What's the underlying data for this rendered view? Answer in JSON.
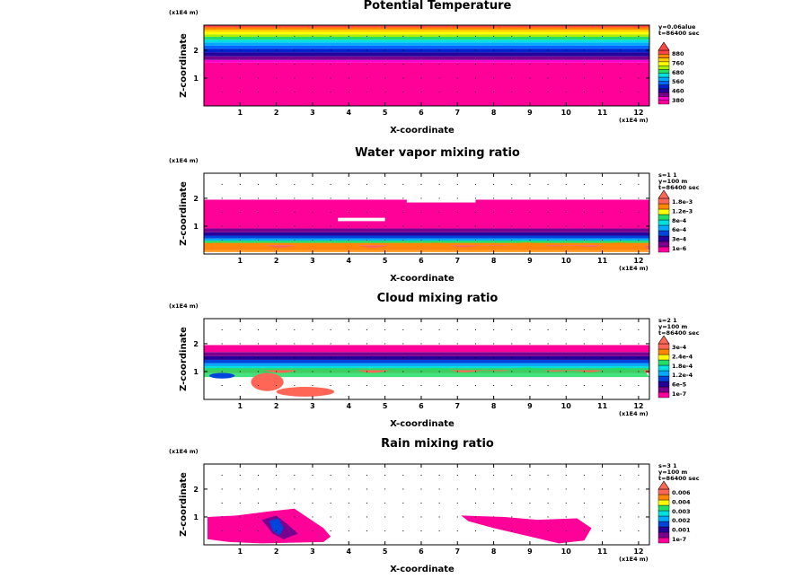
{
  "chart_data": [
    {
      "type": "heatmap",
      "title": "Potential Temperature",
      "xlabel": "X-coordinate",
      "ylabel": "Z-coordinate",
      "x_scale_label": "(x1E4 m)",
      "z_scale_label": "(x1E4 m)",
      "xlim": [
        0,
        12.3
      ],
      "zlim": [
        0,
        2.9
      ],
      "x_ticks": [
        "1",
        "2",
        "3",
        "4",
        "5",
        "6",
        "7",
        "8",
        "9",
        "10",
        "11",
        "12"
      ],
      "z_ticks": [
        "1",
        "2"
      ],
      "meta": [
        "y=0.06alue",
        "t=86400 sec"
      ],
      "legend_levels": [
        "880",
        "760",
        "680",
        "560",
        "460",
        "380"
      ],
      "colors": [
        "#ff0099",
        "#ff00cc",
        "#7a0090",
        "#25009a",
        "#0022cc",
        "#0066ff",
        "#00aaff",
        "#00e0e0",
        "#22dd66",
        "#aaee00",
        "#ffff00",
        "#ffcc00",
        "#ff8800",
        "#ff4444"
      ],
      "bands": [
        {
          "z": [
            0.0,
            1.55
          ],
          "color": "#ff0099"
        },
        {
          "z": [
            1.55,
            1.65
          ],
          "color": "#ff00cc"
        },
        {
          "z": [
            1.65,
            1.78
          ],
          "color": "#7a0090"
        },
        {
          "z": [
            1.78,
            1.92
          ],
          "color": "#25009a"
        },
        {
          "z": [
            1.92,
            2.05
          ],
          "color": "#0022cc"
        },
        {
          "z": [
            2.05,
            2.17
          ],
          "color": "#0066ff"
        },
        {
          "z": [
            2.17,
            2.28
          ],
          "color": "#00aaff"
        },
        {
          "z": [
            2.28,
            2.38
          ],
          "color": "#00e0e0"
        },
        {
          "z": [
            2.38,
            2.48
          ],
          "color": "#22dd66"
        },
        {
          "z": [
            2.48,
            2.57
          ],
          "color": "#aaee00"
        },
        {
          "z": [
            2.57,
            2.66
          ],
          "color": "#ffff00"
        },
        {
          "z": [
            2.66,
            2.74
          ],
          "color": "#ffcc00"
        },
        {
          "z": [
            2.74,
            2.82
          ],
          "color": "#ff8800"
        },
        {
          "z": [
            2.82,
            2.9
          ],
          "color": "#ff4444"
        }
      ]
    },
    {
      "type": "heatmap",
      "title": "Water vapor mixing ratio",
      "xlabel": "X-coordinate",
      "ylabel": "Z-coordinate",
      "x_scale_label": "(x1E4 m)",
      "z_scale_label": "(x1E4 m)",
      "xlim": [
        0,
        12.3
      ],
      "zlim": [
        0,
        2.9
      ],
      "x_ticks": [
        "1",
        "2",
        "3",
        "4",
        "5",
        "6",
        "7",
        "8",
        "9",
        "10",
        "11",
        "12"
      ],
      "z_ticks": [
        "1",
        "2"
      ],
      "meta": [
        "s=1 1",
        "y=100 m",
        "t=86400 sec"
      ],
      "legend_levels": [
        "1.8e-3",
        "1.2e-3",
        "8e-4",
        "6e-4",
        "3e-4",
        "1e-6"
      ],
      "colors": [
        "#ff0099",
        "#7a0090",
        "#25009a",
        "#0044dd",
        "#00aaff",
        "#00e0e0",
        "#22dd66",
        "#ffff00",
        "#ff8800",
        "#ff6655"
      ],
      "bands": [
        {
          "z": [
            0.15,
            0.32
          ],
          "color": "#ff6655"
        },
        {
          "z": [
            0.32,
            0.4
          ],
          "color": "#ff8800"
        },
        {
          "z": [
            0.4,
            0.48
          ],
          "color": "#22dd66"
        },
        {
          "z": [
            0.48,
            0.56
          ],
          "color": "#00aaff"
        },
        {
          "z": [
            0.56,
            0.66
          ],
          "color": "#0044dd"
        },
        {
          "z": [
            0.66,
            0.78
          ],
          "color": "#25009a"
        },
        {
          "z": [
            0.78,
            0.92
          ],
          "color": "#7a0090"
        },
        {
          "z": [
            0.92,
            1.95
          ],
          "color": "#ff0099"
        }
      ],
      "gaps": [
        {
          "x": [
            3.7,
            5.0
          ],
          "z": [
            1.18,
            1.3
          ]
        },
        {
          "x": [
            5.6,
            7.5
          ],
          "z": [
            1.85,
            1.95
          ]
        }
      ]
    },
    {
      "type": "heatmap",
      "title": "Cloud mixing ratio",
      "xlabel": "X-coordinate",
      "ylabel": "Z-coordinate",
      "x_scale_label": "(x1E4 m)",
      "z_scale_label": "(x1E4 m)",
      "xlim": [
        0,
        12.3
      ],
      "zlim": [
        0,
        2.9
      ],
      "x_ticks": [
        "1",
        "2",
        "3",
        "4",
        "5",
        "6",
        "7",
        "8",
        "9",
        "10",
        "11",
        "12"
      ],
      "z_ticks": [
        "1",
        "2"
      ],
      "meta": [
        "s=2 1",
        "y=100 m",
        "t=86400 sec"
      ],
      "legend_levels": [
        "3e-4",
        "2.4e-4",
        "1.8e-4",
        "1.2e-4",
        "6e-5",
        "1e-7"
      ],
      "colors": [
        "#ff0099",
        "#7a0090",
        "#25009a",
        "#0044dd",
        "#00aaff",
        "#00e0e0",
        "#22dd66",
        "#ffff00",
        "#ff8800",
        "#ff6655"
      ],
      "bands": [
        {
          "z": [
            0.95,
            1.25
          ],
          "color": "#ff6655"
        },
        {
          "z": [
            1.05,
            1.12
          ],
          "color": "#22dd66"
        },
        {
          "z": [
            1.12,
            1.2
          ],
          "color": "#00e0e0"
        },
        {
          "z": [
            1.2,
            1.3
          ],
          "color": "#00aaff"
        },
        {
          "z": [
            1.3,
            1.42
          ],
          "color": "#0044dd"
        },
        {
          "z": [
            1.42,
            1.55
          ],
          "color": "#25009a"
        },
        {
          "z": [
            1.55,
            1.7
          ],
          "color": "#7a0090"
        },
        {
          "z": [
            1.7,
            1.95
          ],
          "color": "#ff0099"
        }
      ],
      "blobs": [
        {
          "x": [
            1.3,
            2.2
          ],
          "z": [
            0.3,
            0.95
          ],
          "color": "#ff6655"
        },
        {
          "x": [
            2.0,
            3.6
          ],
          "z": [
            0.1,
            0.45
          ],
          "color": "#ff6655"
        },
        {
          "x": [
            0.15,
            0.85
          ],
          "z": [
            0.75,
            0.95
          ],
          "color": "#0044dd"
        }
      ]
    },
    {
      "type": "heatmap",
      "title": "Rain mixing ratio",
      "xlabel": "X-coordinate",
      "ylabel": "Z-coordinate",
      "x_scale_label": "(x1E4 m)",
      "z_scale_label": "(x1E4 m)",
      "xlim": [
        0,
        12.3
      ],
      "zlim": [
        0,
        2.9
      ],
      "x_ticks": [
        "1",
        "2",
        "3",
        "4",
        "5",
        "6",
        "7",
        "8",
        "9",
        "10",
        "11",
        "12"
      ],
      "z_ticks": [
        "1",
        "2"
      ],
      "meta": [
        "s=3 1",
        "y=100 m",
        "t=86400 sec"
      ],
      "legend_levels": [
        "0.006",
        "0.004",
        "0.003",
        "0.002",
        "0.001",
        "1e-7"
      ],
      "colors": [
        "#ff0099",
        "#7a0090",
        "#25009a",
        "#0044dd",
        "#00aaff",
        "#00e0e0",
        "#22dd66",
        "#ffff00",
        "#ff8800",
        "#ff6655"
      ],
      "regions": [
        {
          "points": [
            [
              0.1,
              1.0
            ],
            [
              0.9,
              1.05
            ],
            [
              1.8,
              1.2
            ],
            [
              2.5,
              1.3
            ],
            [
              2.9,
              0.95
            ],
            [
              3.3,
              0.6
            ],
            [
              3.5,
              0.3
            ],
            [
              3.3,
              0.1
            ],
            [
              1.6,
              0.05
            ],
            [
              0.7,
              0.1
            ],
            [
              0.1,
              0.2
            ]
          ],
          "color": "#ff0099"
        },
        {
          "points": [
            [
              1.6,
              0.9
            ],
            [
              2.0,
              1.05
            ],
            [
              2.3,
              0.75
            ],
            [
              2.6,
              0.4
            ],
            [
              2.2,
              0.2
            ],
            [
              1.9,
              0.4
            ]
          ],
          "color": "#7a0090"
        },
        {
          "points": [
            [
              1.8,
              0.85
            ],
            [
              2.05,
              0.95
            ],
            [
              2.2,
              0.6
            ],
            [
              2.1,
              0.35
            ],
            [
              1.9,
              0.5
            ]
          ],
          "color": "#0044dd"
        },
        {
          "points": [
            [
              7.1,
              1.05
            ],
            [
              8.3,
              1.0
            ],
            [
              9.2,
              0.9
            ],
            [
              10.3,
              0.95
            ],
            [
              10.7,
              0.6
            ],
            [
              10.5,
              0.15
            ],
            [
              9.8,
              0.05
            ],
            [
              9.0,
              0.3
            ],
            [
              8.0,
              0.6
            ],
            [
              7.3,
              0.85
            ]
          ],
          "color": "#ff0099"
        }
      ]
    }
  ]
}
